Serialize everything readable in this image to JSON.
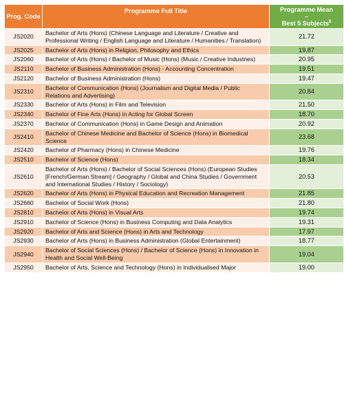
{
  "headers": {
    "code": "Prog. Code",
    "title": "Programme Full Title",
    "mean_line1": "Programme Mean",
    "mean_line2": "–",
    "mean_line3": "Best 5 Subjects",
    "mean_sup": "$"
  },
  "rows": [
    {
      "code": "JS2020",
      "title": "Bachelor of Arts (Hons) (Chinese Language and Literature / Creative and Professional Writing / English Language and Literature / Humanities / Translation)",
      "mean": "21.72"
    },
    {
      "code": "JS2025",
      "title": "Bachelor of Arts (Hons) in Religion, Philosophy and Ethics",
      "mean": "19.87"
    },
    {
      "code": "JS2060",
      "title": "Bachelor of Arts (Hons) / Bachelor of Music (Hons) (Music / Creative Industries)",
      "mean": "20.95"
    },
    {
      "code": "JS2110",
      "title": "Bachelor of Business Administration (Hons) - Accounting Concentration",
      "mean": "19.51"
    },
    {
      "code": "JS2120",
      "title": "Bachelor of Business Administration (Hons)",
      "mean": "19.47"
    },
    {
      "code": "JS2310",
      "title": "Bachelor of Communication (Hons) (Journalism and Digital Media / Public Relations and Advertising)",
      "mean": "20.84"
    },
    {
      "code": "JS2330",
      "title": "Bachelor of Arts (Hons) in Film and Television",
      "mean": "21.50"
    },
    {
      "code": "JS2340",
      "title": "Bachelor of Fine Arts (Hons) in Acting for Global Screen",
      "mean": "18.70"
    },
    {
      "code": "JS2370",
      "title": "Bachelor of Communication (Hons) in Game Design and Animation",
      "mean": "20.92"
    },
    {
      "code": "JS2410",
      "title": "Bachelor of Chinese Medicine and Bachelor of Science (Hons) in Biomedical Science",
      "mean": "23.68"
    },
    {
      "code": "JS2420",
      "title": "Bachelor of Pharmacy (Hons) in Chinese Medicine",
      "mean": "19.76"
    },
    {
      "code": "JS2510",
      "title": "Bachelor of Science (Hons)",
      "mean": "18.34"
    },
    {
      "code": "JS2610",
      "title": "Bachelor of Arts (Hons) / Bachelor of Social Sciences (Hons) (European Studies [French/German Stream] / Geography / Global and China Studies / Government and International Studies / History / Sociology)",
      "mean": "20.53"
    },
    {
      "code": "JS2620",
      "title": "Bachelor of Arts (Hons) in Physical Education and Recreation Management",
      "mean": "21.85"
    },
    {
      "code": "JS2660",
      "title": "Bachelor of Social Work (Hons)",
      "mean": "21.80"
    },
    {
      "code": "JS2810",
      "title": "Bachelor of Arts (Hons) in Visual Arts",
      "mean": "19.74"
    },
    {
      "code": "JS2910",
      "title": "Bachelor of Science (Hons) in Business Computing and Data Analytics",
      "mean": "19.31"
    },
    {
      "code": "JS2920",
      "title": "Bachelor of Arts and Science (Hons) in Arts and Technology",
      "mean": "17.97"
    },
    {
      "code": "JS2930",
      "title": "Bachelor of Arts (Hons) in Business Administration (Global Entertainment)",
      "mean": "18.77"
    },
    {
      "code": "JS2940",
      "title": "Bachelor of Social Sciences (Hons) / Bachelor of Science (Hons) in Innovation in Health and Social Well-Being",
      "mean": "19.04"
    },
    {
      "code": "JS2950",
      "title": "Bachelor of Arts, Science and Technology (Hons) in Individualised Major",
      "mean": "19.00"
    }
  ]
}
